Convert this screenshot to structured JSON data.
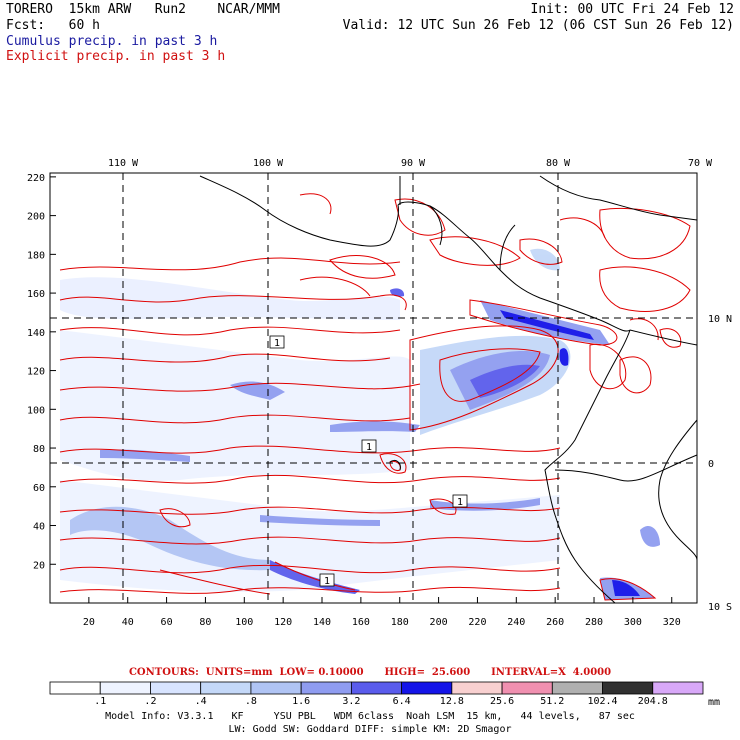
{
  "header": {
    "line1_left": "TORERO  15km ARW   Run2    NCAR/MMM",
    "line1_right": "Init: 00 UTC Fri 24 Feb 12",
    "line2_left": "Fcst:   60 h",
    "line2_right": "Valid: 12 UTC Sun 26 Feb 12 (06 CST Sun 26 Feb 12)",
    "line3": "Cumulus precip. in past 3 h",
    "line4": "Explicit precip. in past 3 h"
  },
  "colors": {
    "cumulus_title": "#1a1aa0",
    "explicit_title": "#d01010",
    "coastline": "#000000",
    "contour": "#e00000"
  },
  "map": {
    "lon_labels_top": [
      "110 W",
      "100 W",
      "90 W",
      "80 W",
      "70 W"
    ],
    "lat_labels_right": [
      "10 N",
      "0",
      "10 S"
    ],
    "x_ticks": [
      "20",
      "40",
      "60",
      "80",
      "100",
      "120",
      "140",
      "160",
      "180",
      "200",
      "220",
      "240",
      "260",
      "280",
      "300",
      "320"
    ],
    "y_ticks": [
      "220",
      "200",
      "180",
      "160",
      "140",
      "120",
      "100",
      "80",
      "60",
      "40",
      "20"
    ],
    "box_labels": [
      "1",
      "1",
      "1",
      "1"
    ]
  },
  "contour_info": "CONTOURS:  UNITS=mm  LOW= 0.10000      HIGH=  25.600      INTERVAL=X  4.0000",
  "legend": {
    "colors": [
      "#ffffff",
      "#eef3ff",
      "#d8e4ff",
      "#c4d8f8",
      "#b0c4f4",
      "#8f9cf0",
      "#5a5cec",
      "#1414e8",
      "#f8d0d0",
      "#f090b0",
      "#b0b0b0",
      "#303030",
      "#d8a8f8"
    ],
    "values": [
      ".1",
      ".2",
      ".4",
      ".8",
      "1.6",
      "3.2",
      "6.4",
      "12.8",
      "25.6",
      "51.2",
      "102.4",
      "204.8"
    ],
    "unit": "mm"
  },
  "footer": {
    "line1": "Model Info: V3.3.1   KF     YSU PBL   WDM 6class  Noah LSM  15 km,   44 levels,   87 sec",
    "line2": "LW: Godd SW: Goddard DIFF: simple KM: 2D Smagor"
  }
}
